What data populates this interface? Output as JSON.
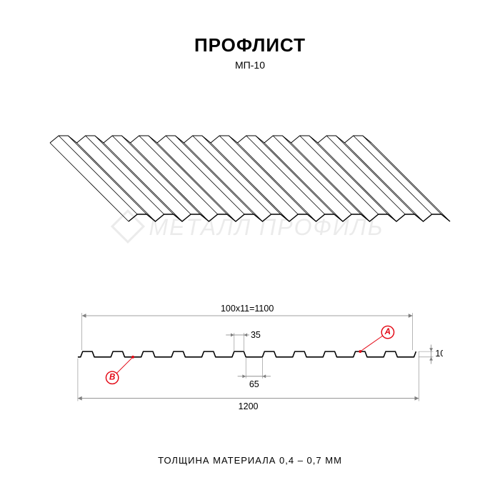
{
  "title": "ПРОФЛИСТ",
  "subtitle": "МП-10",
  "thickness_caption": "ТОЛЩИНА МАТЕРИАЛА 0,4 – 0,7 ММ",
  "watermark_text": "МЕТАЛЛ ПРОФИЛЬ",
  "iso": {
    "rib_count": 12,
    "stroke": "#000000",
    "stroke_width": 1.2
  },
  "section": {
    "total_width_label": "1200",
    "working_width_label": "100х11=1100",
    "top_flat_label": "35",
    "bottom_flat_label": "65",
    "height_label": "10",
    "stroke": "#000000",
    "thin_stroke": "#808080",
    "marker_a": "A",
    "marker_b": "B",
    "module_count": 11,
    "module_width": 44,
    "profile_height": 8,
    "top_flat": 15.4,
    "bottom_flat": 28.6
  }
}
